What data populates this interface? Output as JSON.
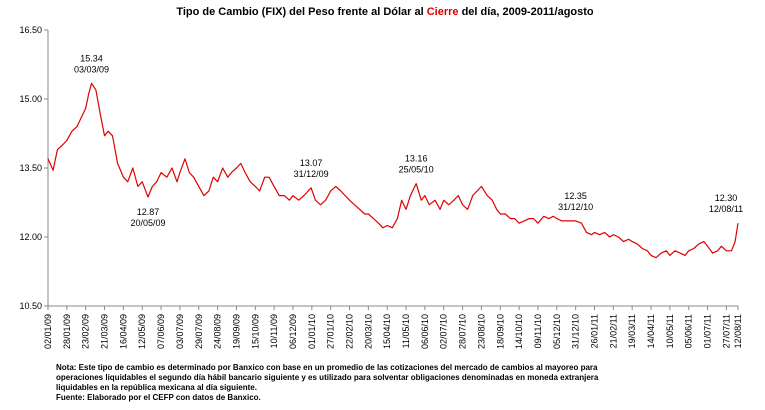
{
  "chart_data": {
    "type": "line",
    "title_parts": [
      "Tipo de Cambio (FIX) del Peso frente al Dólar al ",
      "Cierre",
      " del día, 2009-2011/agosto"
    ],
    "title_highlight_color": "#e00000",
    "color": "#e00000",
    "x": [
      "02/01/09",
      "09/01/09",
      "15/01/09",
      "22/01/09",
      "28/01/09",
      "04/02/09",
      "11/02/09",
      "17/02/09",
      "23/02/09",
      "27/02/09",
      "03/03/09",
      "09/03/09",
      "16/03/09",
      "21/03/09",
      "26/03/09",
      "01/04/09",
      "08/04/09",
      "16/04/09",
      "22/04/09",
      "29/04/09",
      "06/05/09",
      "12/05/09",
      "20/05/09",
      "26/05/09",
      "01/06/09",
      "07/06/09",
      "15/06/09",
      "22/06/09",
      "29/06/09",
      "03/07/09",
      "10/07/09",
      "16/07/09",
      "22/07/09",
      "29/07/09",
      "05/08/09",
      "12/08/09",
      "18/08/09",
      "24/08/09",
      "31/08/09",
      "07/09/09",
      "12/09/09",
      "19/09/09",
      "25/09/09",
      "01/10/09",
      "08/10/09",
      "15/10/09",
      "21/10/09",
      "28/10/09",
      "03/11/09",
      "10/11/09",
      "17/11/09",
      "24/11/09",
      "01/12/09",
      "06/12/09",
      "14/12/09",
      "21/12/09",
      "31/12/09",
      "06/01/10",
      "13/01/10",
      "20/01/10",
      "27/01/10",
      "03/02/10",
      "10/02/10",
      "16/02/10",
      "22/02/10",
      "01/03/10",
      "08/03/10",
      "15/03/10",
      "20/03/10",
      "27/03/10",
      "03/04/10",
      "09/04/10",
      "15/04/10",
      "22/04/10",
      "29/04/10",
      "05/05/10",
      "11/05/10",
      "17/05/10",
      "25/05/10",
      "01/06/10",
      "06/06/10",
      "12/06/10",
      "20/06/10",
      "27/06/10",
      "02/07/10",
      "09/07/10",
      "16/07/10",
      "22/07/10",
      "28/07/10",
      "04/08/10",
      "11/08/10",
      "17/08/10",
      "23/08/10",
      "31/08/10",
      "07/09/10",
      "13/09/10",
      "18/09/10",
      "25/09/10",
      "02/10/10",
      "08/10/10",
      "14/10/10",
      "21/10/10",
      "28/10/10",
      "03/11/10",
      "09/11/10",
      "17/11/10",
      "24/11/10",
      "30/11/10",
      "05/12/10",
      "12/12/10",
      "20/12/10",
      "31/12/10",
      "08/01/11",
      "15/01/11",
      "22/01/11",
      "26/01/11",
      "02/02/11",
      "09/02/11",
      "16/02/11",
      "21/02/11",
      "28/02/11",
      "07/03/11",
      "14/03/11",
      "19/03/11",
      "26/03/11",
      "02/04/11",
      "09/04/11",
      "14/04/11",
      "21/04/11",
      "28/04/11",
      "05/05/11",
      "10/05/11",
      "17/05/11",
      "24/05/11",
      "31/05/11",
      "05/06/11",
      "12/06/11",
      "19/06/11",
      "26/06/11",
      "01/07/11",
      "08/07/11",
      "15/07/11",
      "20/07/11",
      "27/07/11",
      "03/08/11",
      "08/08/11",
      "12/08/11"
    ],
    "values": [
      13.7,
      13.45,
      13.9,
      14.0,
      14.1,
      14.3,
      14.4,
      14.6,
      14.8,
      15.1,
      15.34,
      15.2,
      14.6,
      14.2,
      14.3,
      14.2,
      13.6,
      13.3,
      13.2,
      13.5,
      13.1,
      13.2,
      12.87,
      13.1,
      13.2,
      13.4,
      13.3,
      13.5,
      13.2,
      13.4,
      13.7,
      13.4,
      13.3,
      13.1,
      12.9,
      13.0,
      13.3,
      13.2,
      13.5,
      13.3,
      13.4,
      13.5,
      13.6,
      13.4,
      13.2,
      13.1,
      13.0,
      13.3,
      13.3,
      13.1,
      12.9,
      12.9,
      12.8,
      12.9,
      12.8,
      12.9,
      13.07,
      12.8,
      12.7,
      12.8,
      13.0,
      13.1,
      13.0,
      12.9,
      12.8,
      12.7,
      12.6,
      12.5,
      12.5,
      12.4,
      12.3,
      12.2,
      12.25,
      12.2,
      12.4,
      12.8,
      12.6,
      12.9,
      13.16,
      12.8,
      12.9,
      12.7,
      12.8,
      12.6,
      12.8,
      12.7,
      12.8,
      12.9,
      12.7,
      12.6,
      12.9,
      13.0,
      13.1,
      12.9,
      12.8,
      12.6,
      12.5,
      12.5,
      12.4,
      12.4,
      12.3,
      12.35,
      12.4,
      12.4,
      12.3,
      12.45,
      12.4,
      12.45,
      12.4,
      12.35,
      12.35,
      12.35,
      12.3,
      12.1,
      12.05,
      12.1,
      12.05,
      12.1,
      12.0,
      12.05,
      12.0,
      11.9,
      11.95,
      11.9,
      11.85,
      11.75,
      11.7,
      11.6,
      11.55,
      11.65,
      11.7,
      11.6,
      11.7,
      11.65,
      11.6,
      11.7,
      11.75,
      11.85,
      11.9,
      11.8,
      11.65,
      11.7,
      11.8,
      11.7,
      11.7,
      11.9,
      12.3
    ],
    "xlim": [
      "02/01/09",
      "12/08/11"
    ],
    "xticks": [
      "02/01/09",
      "28/01/09",
      "23/02/09",
      "21/03/09",
      "16/04/09",
      "12/05/09",
      "07/06/09",
      "03/07/09",
      "29/07/09",
      "24/08/09",
      "19/09/09",
      "15/10/09",
      "10/11/09",
      "06/12/09",
      "01/01/10",
      "27/01/10",
      "22/02/10",
      "20/03/10",
      "15/04/10",
      "11/05/10",
      "06/06/10",
      "02/07/10",
      "28/07/10",
      "23/08/10",
      "18/09/10",
      "14/10/10",
      "09/11/10",
      "05/12/10",
      "31/12/10",
      "26/01/11",
      "21/02/11",
      "19/03/11",
      "14/04/11",
      "10/05/11",
      "05/06/11",
      "01/07/11",
      "27/07/11",
      "12/08/11"
    ],
    "ylim": [
      10.5,
      16.5
    ],
    "yticks": [
      {
        "value": 10.5,
        "label": "10.50"
      },
      {
        "value": 12,
        "label": "12.00"
      },
      {
        "value": 13.5,
        "label": "13.50"
      },
      {
        "value": 15,
        "label": "15.00"
      },
      {
        "value": 16.5,
        "label": "16.50"
      }
    ],
    "annotations": [
      {
        "label": "15.34",
        "date": "03/03/09",
        "placement": "above"
      },
      {
        "label": "12.87",
        "date": "20/05/09",
        "placement": "below"
      },
      {
        "label": "13.07",
        "date": "31/12/09",
        "placement": "above"
      },
      {
        "label": "13.16",
        "date": "25/05/10",
        "placement": "above"
      },
      {
        "label": "12.35",
        "date": "31/12/10",
        "placement": "above"
      },
      {
        "label": "12.30",
        "date": "12/08/11",
        "placement": "above"
      }
    ],
    "notes": [
      "Nota: Este tipo de cambio es determinado por Banxico con base en un promedio de las cotizaciones del mercado de cambios al mayoreo para",
      "operaciones liquidables el segundo día hábil bancario siguiente y es utilizado para solventar obligaciones denominadas en moneda extranjera",
      "liquidables en la república mexicana al día siguiente.",
      "Fuente: Elaborado por el CEFP con datos de Banxico."
    ]
  }
}
